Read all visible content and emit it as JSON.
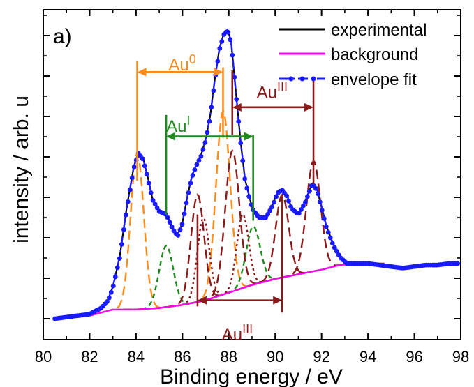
{
  "chart_data": {
    "type": "line",
    "panel_label": "a)",
    "xlabel": "Binding energy / eV",
    "ylabel": "intensity / arb. u",
    "xlim": [
      80,
      98
    ],
    "ylim": [
      0,
      1.05
    ],
    "x_ticks": [
      80,
      82,
      84,
      86,
      88,
      90,
      92,
      94,
      96,
      98
    ],
    "x_tick_labels": [
      "80",
      "82",
      "84",
      "86",
      "88",
      "90",
      "92",
      "94",
      "96",
      "98"
    ],
    "y_tick_labels_shown": false,
    "legend": {
      "placement": "top-right",
      "entries": [
        {
          "label": "experimental",
          "color": "#000000",
          "style": "solid"
        },
        {
          "label": "background",
          "color": "#ff00ff",
          "style": "solid"
        },
        {
          "label": "envelope fit",
          "color": "#1a1aff",
          "style": "dash-dot-markers"
        }
      ]
    },
    "series": [
      {
        "name": "experimental",
        "color": "#000000"
      },
      {
        "name": "background",
        "color": "#ff00ff"
      },
      {
        "name": "envelope fit",
        "color": "#1a1aff"
      }
    ],
    "background": {
      "x": [
        80.5,
        82,
        82.5,
        83,
        84,
        85,
        86,
        87,
        88,
        89,
        90,
        91,
        92,
        92.8,
        93.5
      ],
      "y": [
        0.0,
        0.01,
        0.02,
        0.03,
        0.03,
        0.035,
        0.045,
        0.06,
        0.085,
        0.11,
        0.13,
        0.145,
        0.16,
        0.175,
        0.18
      ]
    },
    "envelope": {
      "x": [
        80.5,
        81,
        81.5,
        82,
        82.5,
        82.8,
        83,
        83.3,
        83.6,
        83.9,
        84.1,
        84.3,
        84.5,
        84.7,
        85,
        85.3,
        85.6,
        85.8,
        86,
        86.2,
        86.4,
        86.6,
        86.8,
        87,
        87.2,
        87.4,
        87.6,
        87.8,
        87.95,
        88.1,
        88.3,
        88.5,
        88.7,
        89,
        89.3,
        89.6,
        89.9,
        90.1,
        90.3,
        90.5,
        90.7,
        91,
        91.3,
        91.6,
        91.8,
        92,
        92.2,
        92.5,
        92.8,
        93.1,
        93.5,
        94,
        94.5,
        95,
        95.5,
        96,
        96.5,
        97,
        97.5,
        97.9
      ],
      "y": [
        0.0,
        0.005,
        0.01,
        0.015,
        0.035,
        0.06,
        0.1,
        0.2,
        0.36,
        0.49,
        0.54,
        0.52,
        0.46,
        0.39,
        0.35,
        0.34,
        0.29,
        0.27,
        0.31,
        0.39,
        0.46,
        0.5,
        0.53,
        0.58,
        0.66,
        0.78,
        0.88,
        0.93,
        0.94,
        0.9,
        0.74,
        0.58,
        0.45,
        0.36,
        0.33,
        0.33,
        0.37,
        0.41,
        0.42,
        0.4,
        0.36,
        0.34,
        0.38,
        0.44,
        0.42,
        0.36,
        0.3,
        0.24,
        0.2,
        0.18,
        0.18,
        0.18,
        0.175,
        0.17,
        0.165,
        0.17,
        0.175,
        0.175,
        0.18,
        0.18
      ]
    },
    "components": [
      {
        "group": "Au0",
        "color": "#ff8c1a",
        "style": "long-dash",
        "center": 84.05,
        "height": 0.51,
        "width": 0.42
      },
      {
        "group": "Au0",
        "color": "#ff8c1a",
        "style": "long-dash",
        "center": 87.75,
        "height": 0.6,
        "width": 0.45
      },
      {
        "group": "AuI",
        "color": "#1f8a1f",
        "style": "short-dash",
        "center": 85.3,
        "height": 0.2,
        "width": 0.45
      },
      {
        "group": "AuI",
        "color": "#1f8a1f",
        "style": "short-dash",
        "center": 89.05,
        "height": 0.19,
        "width": 0.45
      },
      {
        "group": "AuIII",
        "color": "#8b1a1a",
        "style": "long-dash",
        "center": 86.65,
        "height": 0.35,
        "width": 0.42
      },
      {
        "group": "AuIII",
        "color": "#8b1a1a",
        "style": "long-dash",
        "center": 90.3,
        "height": 0.27,
        "width": 0.42
      },
      {
        "group": "AuIII",
        "color": "#8b1a1a",
        "style": "long-dash",
        "center": 88.15,
        "height": 0.46,
        "width": 0.45
      },
      {
        "group": "AuIII",
        "color": "#8b1a1a",
        "style": "long-dash",
        "center": 91.65,
        "height": 0.36,
        "width": 0.45
      },
      {
        "group": "AuIII-dot",
        "color": "#8b1a1a",
        "style": "dotted",
        "center": 86.9,
        "height": 0.27,
        "width": 0.38
      },
      {
        "group": "AuIII-dot",
        "color": "#8b1a1a",
        "style": "dotted",
        "center": 88.6,
        "height": 0.24,
        "width": 0.38
      }
    ],
    "annotations": [
      {
        "label_base": "Au",
        "label_sup": "0",
        "color": "#ff8c1a",
        "x1": 84.05,
        "x2": 87.75,
        "arrow_y": 0.805,
        "line1_y": [
          0.45,
          0.84
        ],
        "line2_y": [
          0.59,
          0.82
        ],
        "label_x": 85.4,
        "label_y": 0.81
      },
      {
        "label_base": "Au",
        "label_sup": "I",
        "color": "#1f8a1f",
        "x1": 85.3,
        "x2": 89.05,
        "arrow_y": 0.595,
        "line1_y": [
          0.34,
          0.665
        ],
        "line2_y": [
          0.32,
          0.6
        ],
        "label_x": 85.3,
        "label_y": 0.61
      },
      {
        "label_base": "Au",
        "label_sup": "III",
        "color": "#8b1a1a",
        "x1": 88.15,
        "x2": 91.65,
        "arrow_y": 0.69,
        "line1_y": [
          0.6,
          0.81
        ],
        "line2_y": [
          0.44,
          0.78
        ],
        "label_x": 89.2,
        "label_y": 0.72
      },
      {
        "label_base": "Au",
        "label_sup": "III",
        "color": "#8b1a1a",
        "x1": 86.65,
        "x2": 90.3,
        "arrow_y": 0.06,
        "line1_y": [
          0.04,
          0.34
        ],
        "line2_y": [
          0.02,
          0.4
        ],
        "label_x": 87.7,
        "label_y": -0.07
      }
    ]
  }
}
